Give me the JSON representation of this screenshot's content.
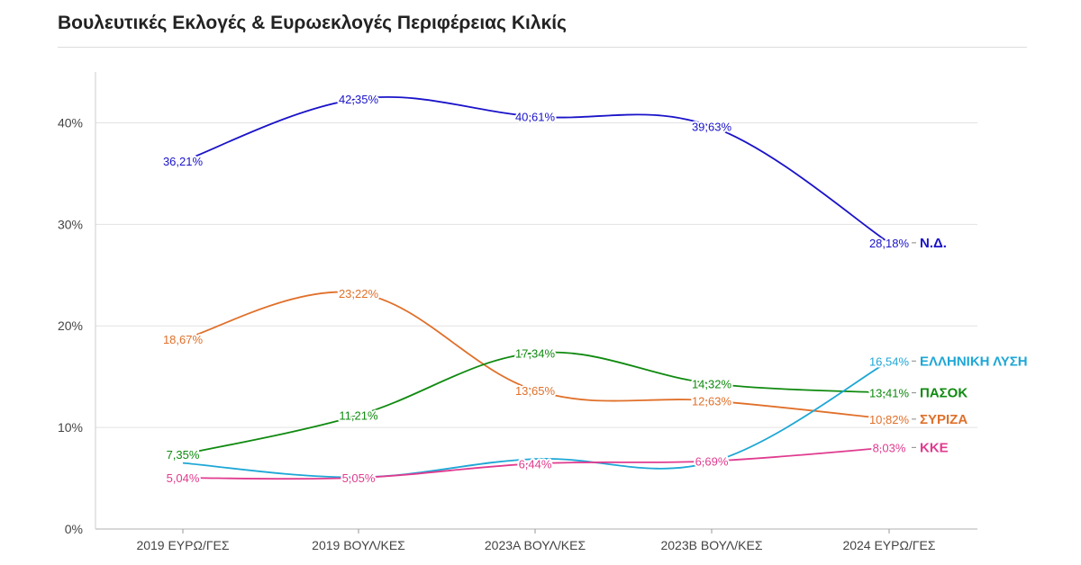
{
  "chart_data": {
    "type": "line",
    "title": "Βουλευτικές Εκλογές & Ευρωεκλογές Περιφέρειας Κιλκίς",
    "categories": [
      "2019 ΕΥΡΩ/ΓΕΣ",
      "2019 ΒΟΥΛ/ΚΕΣ",
      "2023Α ΒΟΥΛ/ΚΕΣ",
      "2023Β ΒΟΥΛ/ΚΕΣ",
      "2024 ΕΥΡΩ/ΓΕΣ"
    ],
    "ylim": [
      0,
      45
    ],
    "yticks": [
      0,
      10,
      20,
      30,
      40
    ],
    "ytick_labels": [
      "0%",
      "10%",
      "20%",
      "30%",
      "40%"
    ],
    "grid": true,
    "series": [
      {
        "name": "Ν.Δ.",
        "color": "#1a13c9",
        "values": [
          36.21,
          42.35,
          40.61,
          39.63,
          28.18
        ],
        "labels": [
          "36,21%",
          "42,35%",
          "40,61%",
          "39,63%",
          "28,18%"
        ],
        "show_labels": [
          true,
          true,
          true,
          true,
          true
        ]
      },
      {
        "name": "ΣΥΡΙΖΑ",
        "color": "#e0702a",
        "values": [
          18.67,
          23.22,
          13.65,
          12.63,
          10.82
        ],
        "labels": [
          "18,67%",
          "23,22%",
          "13,65%",
          "12,63%",
          "10,82%"
        ],
        "show_labels": [
          true,
          true,
          true,
          true,
          true
        ]
      },
      {
        "name": "ΠΑΣΟΚ",
        "color": "#0f8a0f",
        "values": [
          7.35,
          11.21,
          17.34,
          14.32,
          13.41
        ],
        "labels": [
          "7,35%",
          "11,21%",
          "17,34%",
          "14,32%",
          "13,41%"
        ],
        "show_labels": [
          true,
          true,
          true,
          true,
          true
        ]
      },
      {
        "name": "ΕΛΛΗΝΙΚΗ ΛΥΣΗ",
        "color": "#1ea7d6",
        "values": [
          6.5,
          5.1,
          6.9,
          6.6,
          16.54
        ],
        "labels": [
          "",
          "",
          "",
          "",
          "16,54%"
        ],
        "show_labels": [
          false,
          false,
          false,
          false,
          true
        ]
      },
      {
        "name": "ΚΚΕ",
        "color": "#e03b8f",
        "values": [
          5.04,
          5.05,
          6.44,
          6.69,
          8.03
        ],
        "labels": [
          "5,04%",
          "5,05%",
          "6,44%",
          "6,69%",
          "8,03%"
        ],
        "show_labels": [
          true,
          true,
          true,
          true,
          true
        ]
      }
    ]
  }
}
